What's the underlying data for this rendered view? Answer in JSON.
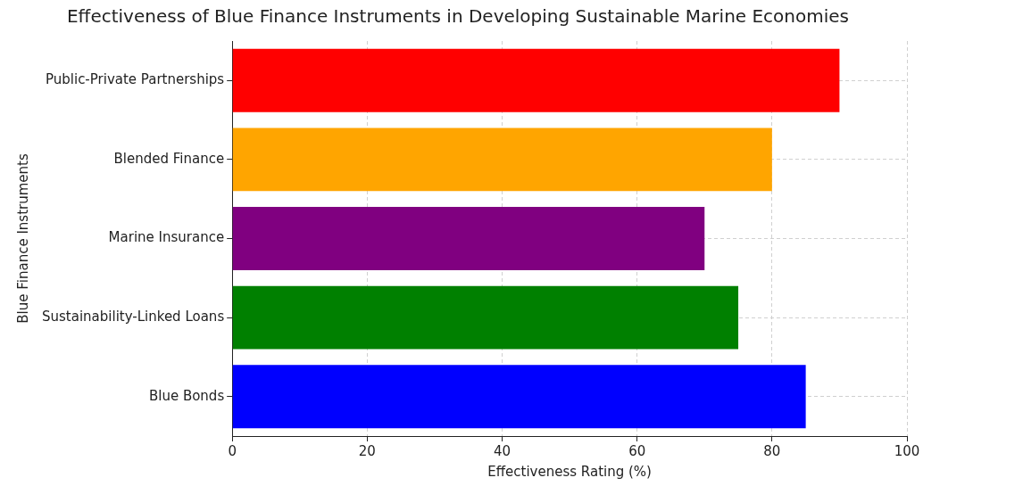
{
  "chart_data": {
    "type": "bar",
    "orientation": "horizontal",
    "title": "Effectiveness of Blue Finance Instruments in Developing Sustainable Marine Economies",
    "xlabel": "Effectiveness Rating (%)",
    "ylabel": "Blue Finance Instruments",
    "categories": [
      "Public-Private Partnerships",
      "Blended Finance",
      "Marine Insurance",
      "Sustainability-Linked Loans",
      "Blue Bonds"
    ],
    "values": [
      90,
      80,
      70,
      75,
      85
    ],
    "colors": [
      "#ff0000",
      "#ffa500",
      "#800080",
      "#008000",
      "#0000ff"
    ],
    "xlim": [
      0,
      100
    ],
    "xticks": [
      0,
      20,
      40,
      60,
      80,
      100
    ],
    "grid": true,
    "legend": false
  }
}
